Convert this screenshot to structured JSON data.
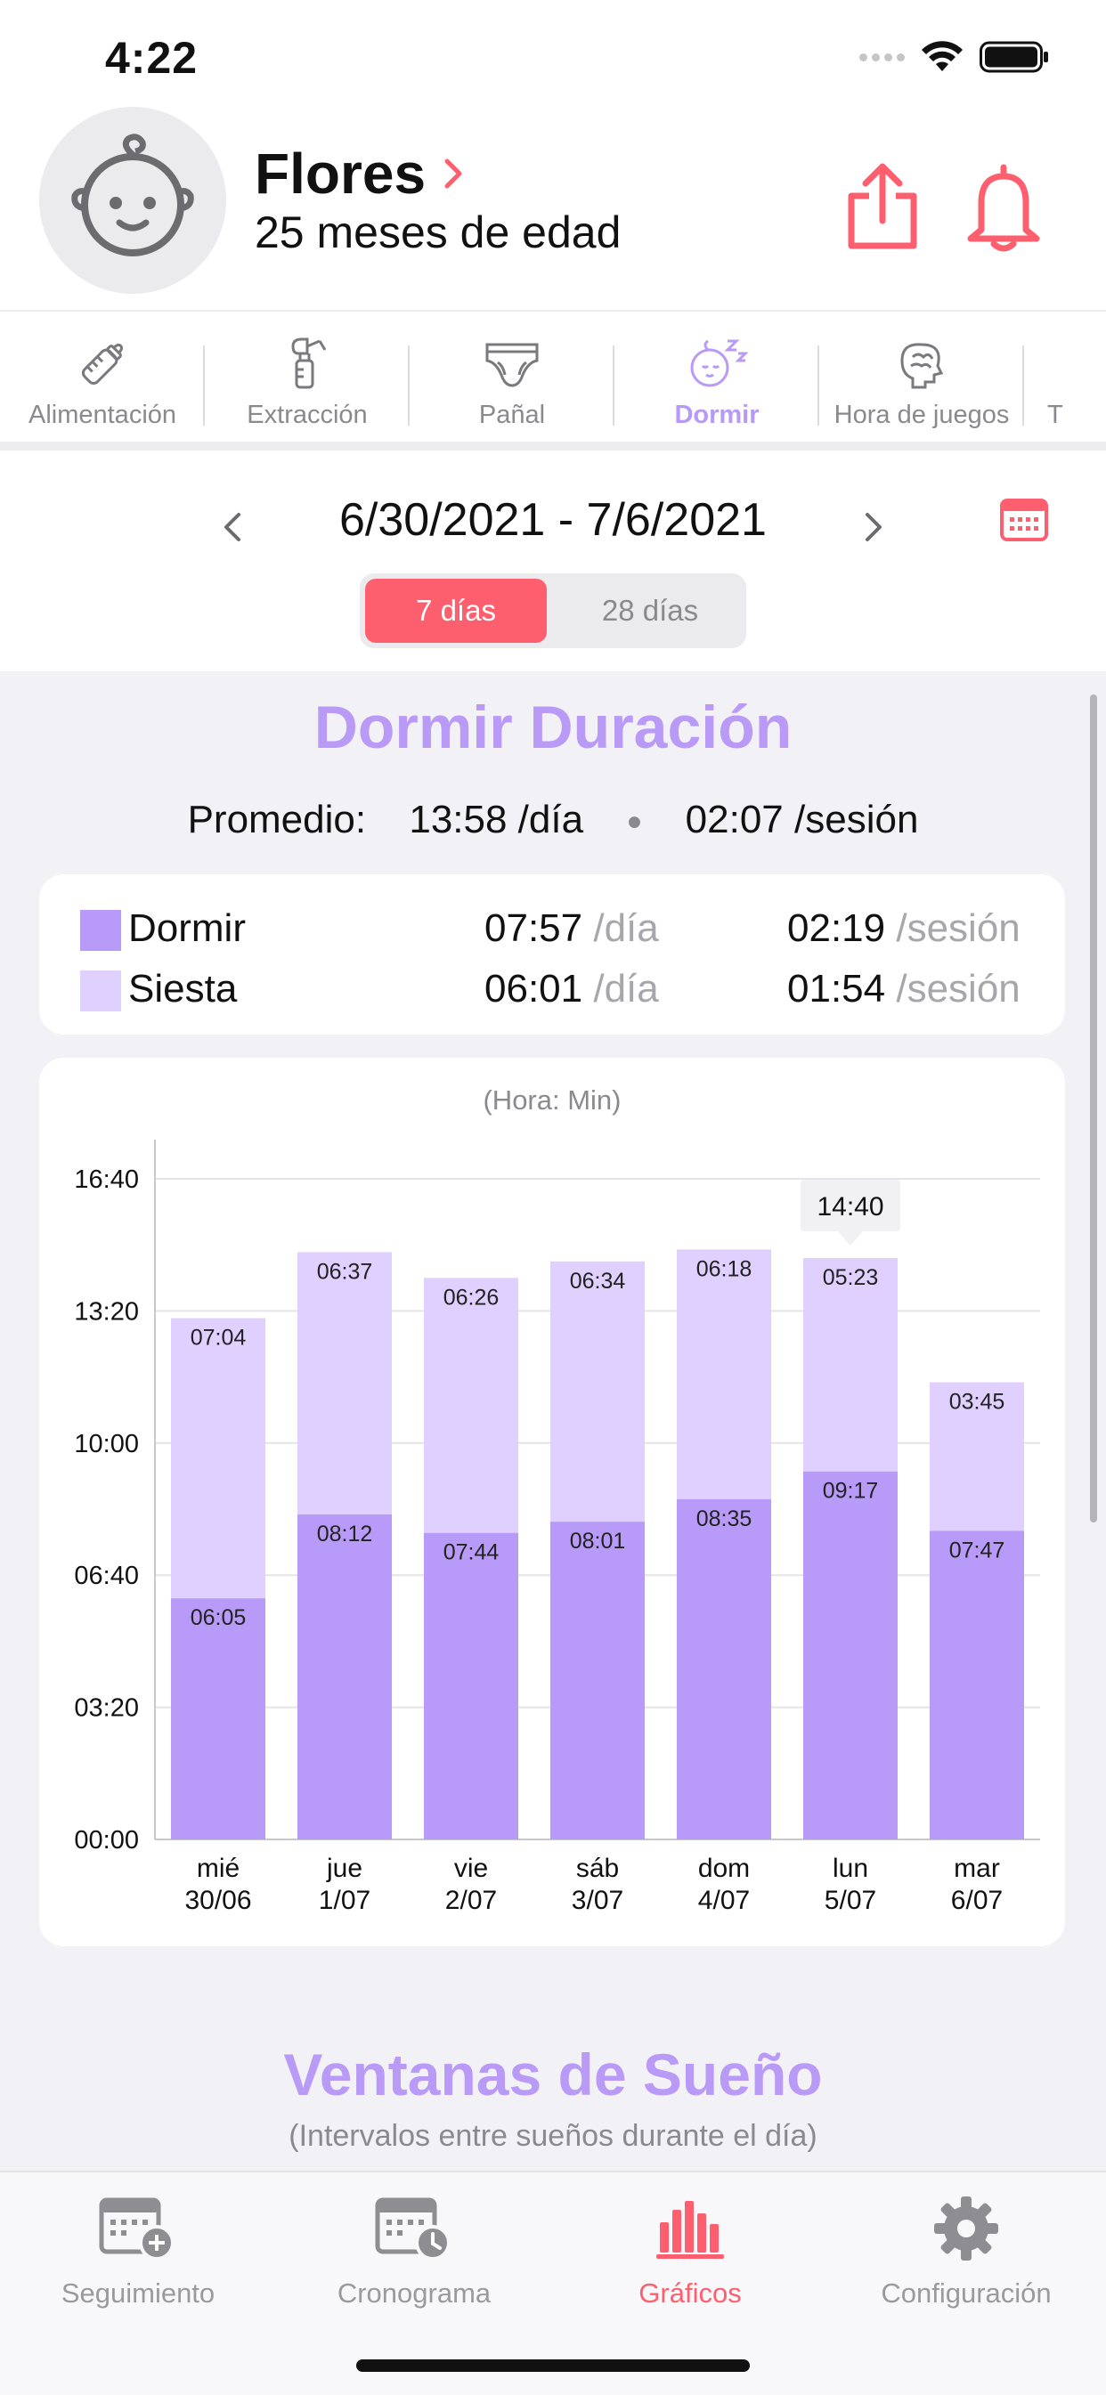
{
  "status_bar": {
    "time": "4:22"
  },
  "profile": {
    "name": "Flores",
    "age": "25 meses de edad"
  },
  "categories": [
    {
      "label": "Alimentación",
      "icon": "bottle-icon"
    },
    {
      "label": "Extracción",
      "icon": "breast-pump-icon"
    },
    {
      "label": "Pañal",
      "icon": "diaper-icon"
    },
    {
      "label": "Dormir",
      "icon": "sleeping-baby-icon",
      "active": true
    },
    {
      "label": "Hora de juegos",
      "icon": "brain-icon"
    },
    {
      "label": "T",
      "icon": "more-icon"
    }
  ],
  "date_range": {
    "label": "6/30/2021 - 7/6/2021"
  },
  "segment": {
    "option1": "7 días",
    "option2": "28 días",
    "selected": "7 días"
  },
  "duration_section": {
    "title": "Dormir Duración",
    "avg_label": "Promedio:",
    "avg_per_day": "13:58 /día",
    "avg_per_session": "02:07 /sesión"
  },
  "legend": [
    {
      "name": "Dormir",
      "day_value": "07:57",
      "day_unit": "/día",
      "session_value": "02:19",
      "session_unit": "/sesión",
      "color": "#b89af8"
    },
    {
      "name": "Siesta",
      "day_value": "06:01",
      "day_unit": "/día",
      "session_value": "01:54",
      "session_unit": "/sesión",
      "color": "#e0d0ff"
    }
  ],
  "chart_data": {
    "type": "bar",
    "stacked": true,
    "unit_label": "(Hora: Min)",
    "y_ticks": [
      "00:00",
      "03:20",
      "06:40",
      "10:00",
      "13:20",
      "16:40"
    ],
    "ylim": [
      0,
      1000
    ],
    "categories": [
      {
        "day": "mié",
        "date": "30/06"
      },
      {
        "day": "jue",
        "date": "1/07"
      },
      {
        "day": "vie",
        "date": "2/07"
      },
      {
        "day": "sáb",
        "date": "3/07"
      },
      {
        "day": "dom",
        "date": "4/07"
      },
      {
        "day": "lun",
        "date": "5/07"
      },
      {
        "day": "mar",
        "date": "6/07"
      }
    ],
    "series": [
      {
        "name": "Dormir",
        "color": "#b89af8",
        "labels": [
          "06:05",
          "08:12",
          "07:44",
          "08:01",
          "08:35",
          "09:17",
          "07:47"
        ],
        "values": [
          365,
          492,
          464,
          481,
          515,
          557,
          467
        ]
      },
      {
        "name": "Siesta",
        "color": "#e0d0ff",
        "labels": [
          "07:04",
          "06:37",
          "06:26",
          "06:34",
          "06:18",
          "05:23",
          "03:45"
        ],
        "values": [
          424,
          397,
          386,
          394,
          378,
          323,
          225
        ]
      }
    ],
    "tooltip": {
      "category_index": 5,
      "label": "14:40"
    },
    "grid": true
  },
  "windows_section": {
    "title": "Ventanas de Sueño",
    "subtitle": "(Intervalos entre sueños durante el día)"
  },
  "tab_bar": [
    {
      "label": "Seguimiento",
      "icon": "calendar-add-icon"
    },
    {
      "label": "Cronograma",
      "icon": "calendar-clock-icon"
    },
    {
      "label": "Gráficos",
      "icon": "bar-chart-icon",
      "active": true
    },
    {
      "label": "Configuración",
      "icon": "gear-icon"
    }
  ],
  "colors": {
    "accent": "#fe5f6f",
    "purple": "#b99af7",
    "sleep": "#b89af8",
    "nap": "#e0d0ff"
  }
}
